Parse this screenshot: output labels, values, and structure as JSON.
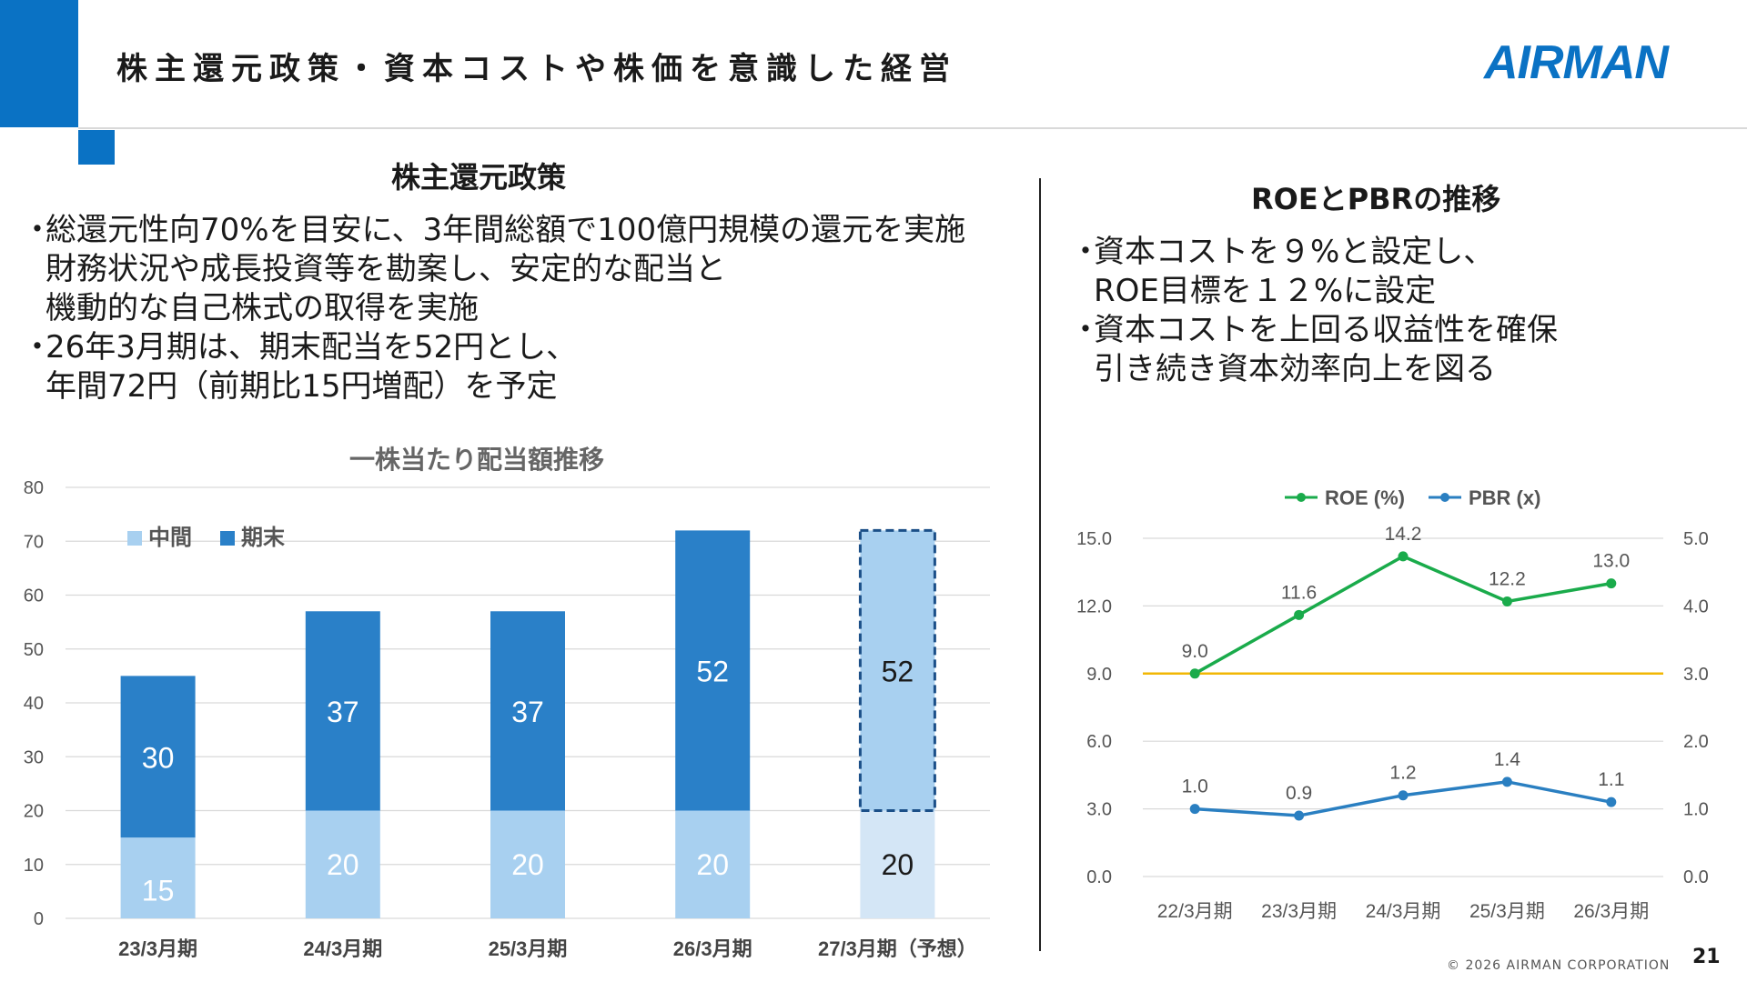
{
  "header": {
    "title": "株主還元政策・資本コストや株価を意識した経営",
    "logo_text": "AIRMAN",
    "brand_color": "#0a72c4"
  },
  "left": {
    "heading": "株主還元政策",
    "bullets": [
      {
        "lines": [
          "総還元性向70%を目安に、3年間総額で100億円規模の還元を実施",
          "財務状況や成長投資等を勘案し、安定的な配当と",
          "機動的な自己株式の取得を実施"
        ]
      },
      {
        "lines": [
          "26年3月期は、期末配当を52円とし、",
          "年間72円（前期比15円増配）を予定"
        ]
      }
    ],
    "bullet_mark": "・"
  },
  "right": {
    "heading": "ROEとPBRの推移",
    "bullets": [
      {
        "lines": [
          "資本コストを９%と設定し、",
          "ROE目標を１２%に設定"
        ]
      },
      {
        "lines": [
          "資本コストを上回る収益性を確保",
          "引き続き資本効率向上を図る"
        ]
      }
    ],
    "bullet_mark": "・"
  },
  "chart_data": [
    {
      "type": "bar",
      "stacked": true,
      "title": "一株当たり配当額推移",
      "categories": [
        "23/3月期",
        "24/3月期",
        "25/3月期",
        "26/3月期",
        "27/3月期（予想）"
      ],
      "series": [
        {
          "name": "中間",
          "values": [
            15,
            20,
            20,
            20,
            20
          ],
          "color": "#a8d0f0"
        },
        {
          "name": "期末",
          "values": [
            30,
            37,
            37,
            52,
            52
          ],
          "color": "#2a80c8"
        }
      ],
      "forecast_category_index": 4,
      "forecast_colors": {
        "interim": "#d4e6f6",
        "final": "#a8d0f0",
        "outline": "#1b4f88"
      },
      "yticks": [
        0,
        10,
        20,
        30,
        40,
        50,
        60,
        70,
        80
      ],
      "ylim": [
        0,
        80
      ],
      "grid": true,
      "legend_position": "top-left",
      "xlabel": "",
      "ylabel": ""
    },
    {
      "type": "line",
      "categories": [
        "22/3月期",
        "23/3月期",
        "24/3月期",
        "25/3月期",
        "26/3月期"
      ],
      "series": [
        {
          "name": "ROE (%)",
          "values": [
            9.0,
            11.6,
            14.2,
            12.2,
            13.0
          ],
          "labels": [
            "9.0",
            "11.6",
            "14.2",
            "12.2",
            "13.0"
          ],
          "color": "#1aab4b",
          "axis": "left"
        },
        {
          "name": "PBR (x)",
          "values": [
            1.0,
            0.9,
            1.2,
            1.4,
            1.1
          ],
          "labels": [
            "1.0",
            "0.9",
            "1.2",
            "1.4",
            "1.1"
          ],
          "color": "#2a7fc1",
          "axis": "right"
        }
      ],
      "reference_line": {
        "value": 9.0,
        "axis": "left",
        "color": "#f2b705"
      },
      "y_left": {
        "ylim": [
          0,
          15
        ],
        "ticks": [
          "0.0",
          "3.0",
          "6.0",
          "9.0",
          "12.0",
          "15.0"
        ]
      },
      "y_right": {
        "ylim": [
          0,
          5
        ],
        "ticks": [
          "0.0",
          "1.0",
          "2.0",
          "3.0",
          "4.0",
          "5.0"
        ]
      },
      "grid": true,
      "legend_position": "top-center",
      "xlabel": "",
      "ylabel": ""
    }
  ],
  "footer": {
    "copyright": "© 2026 AIRMAN CORPORATION",
    "page_number": "21"
  }
}
